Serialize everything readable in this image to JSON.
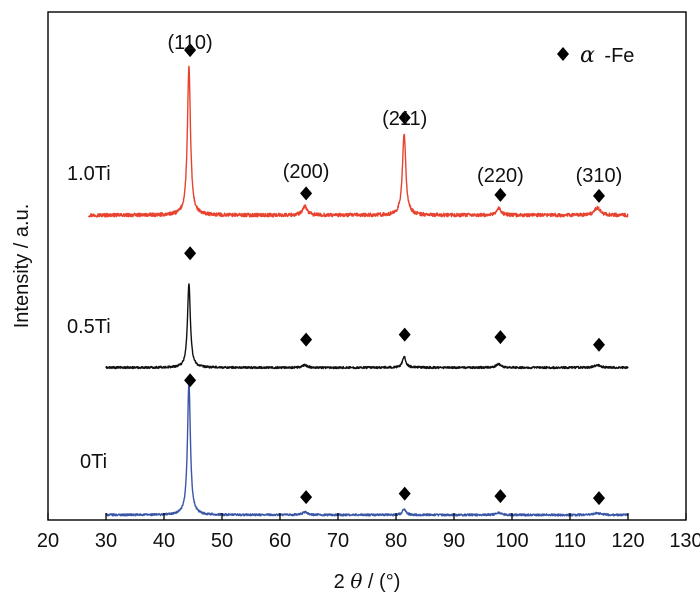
{
  "chart_data": {
    "type": "line",
    "title": "",
    "xlabel_prefix": "2",
    "xlabel_symbol": "θ",
    "xlabel_suffix": " / (°)",
    "ylabel": "Intensity / a.u.",
    "xlim": [
      20,
      130
    ],
    "ylim": [
      0,
      100
    ],
    "xticks": [
      20,
      30,
      40,
      50,
      60,
      70,
      80,
      90,
      100,
      110,
      120,
      130
    ],
    "y_ticks_shown": false,
    "legend": {
      "marker": "diamond",
      "symbol": "α",
      "text": "-Fe",
      "position": "top-right"
    },
    "peak_positions": [
      44.5,
      64.5,
      81.5,
      98.0,
      115.0
    ],
    "peak_labels": [
      {
        "text": "(110)",
        "x": 44.5
      },
      {
        "text": "(200)",
        "x": 64.5
      },
      {
        "text": "(211)",
        "x": 81.5
      },
      {
        "text": "(220)",
        "x": 98.0
      },
      {
        "text": "(310)",
        "x": 115.0
      }
    ],
    "series": [
      {
        "name": "1.0Ti",
        "color": "#e8432e",
        "x_start": 27,
        "x_end": 120,
        "baseline": 60,
        "noise": 0.35,
        "peaks": [
          {
            "x": 44.3,
            "height": 29,
            "width": 0.32
          },
          {
            "x": 64.3,
            "height": 1.8,
            "width": 0.45
          },
          {
            "x": 81.4,
            "height": 16,
            "width": 0.35
          },
          {
            "x": 97.7,
            "height": 1.3,
            "width": 0.5
          },
          {
            "x": 114.7,
            "height": 1.5,
            "width": 0.6
          }
        ],
        "markers": [
          {
            "x": 44.5,
            "y": 92.5
          },
          {
            "x": 64.5,
            "y": 64.3
          },
          {
            "x": 81.5,
            "y": 79.2
          },
          {
            "x": 98.0,
            "y": 64.0
          },
          {
            "x": 115.0,
            "y": 63.8
          }
        ]
      },
      {
        "name": "0.5Ti",
        "color": "#111111",
        "x_start": 30,
        "x_end": 120,
        "baseline": 30,
        "noise": 0.2,
        "peaks": [
          {
            "x": 44.3,
            "height": 16.5,
            "width": 0.3
          },
          {
            "x": 64.3,
            "height": 0.5,
            "width": 0.45
          },
          {
            "x": 81.4,
            "height": 2.2,
            "width": 0.35
          },
          {
            "x": 97.7,
            "height": 0.7,
            "width": 0.5
          },
          {
            "x": 114.7,
            "height": 0.5,
            "width": 0.6
          }
        ],
        "markers": [
          {
            "x": 44.5,
            "y": 52.5
          },
          {
            "x": 64.5,
            "y": 35.5
          },
          {
            "x": 81.5,
            "y": 36.5
          },
          {
            "x": 98.0,
            "y": 36.0
          },
          {
            "x": 115.0,
            "y": 34.5
          }
        ]
      },
      {
        "name": "0Ti",
        "color": "#3a56a6",
        "x_start": 30,
        "x_end": 120,
        "baseline": 1,
        "noise": 0.2,
        "peaks": [
          {
            "x": 44.3,
            "height": 26,
            "width": 0.3
          },
          {
            "x": 64.3,
            "height": 0.6,
            "width": 0.45
          },
          {
            "x": 81.4,
            "height": 1.2,
            "width": 0.35
          },
          {
            "x": 97.7,
            "height": 0.5,
            "width": 0.5
          },
          {
            "x": 114.7,
            "height": 0.4,
            "width": 0.6
          }
        ],
        "markers": [
          {
            "x": 44.5,
            "y": 27.5
          },
          {
            "x": 64.5,
            "y": 4.5
          },
          {
            "x": 81.5,
            "y": 5.2
          },
          {
            "x": 98.0,
            "y": 4.7
          },
          {
            "x": 115.0,
            "y": 4.3
          }
        ]
      }
    ]
  }
}
